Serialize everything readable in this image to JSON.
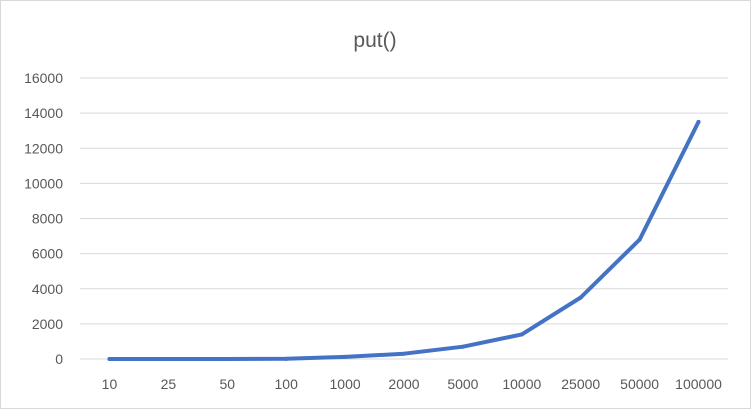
{
  "chart_data": {
    "type": "line",
    "title": "put()",
    "xlabel": "",
    "ylabel": "",
    "categories": [
      "10",
      "25",
      "50",
      "100",
      "1000",
      "2000",
      "5000",
      "10000",
      "25000",
      "50000",
      "100000"
    ],
    "series": [
      {
        "name": "put()",
        "color": "#4472c4",
        "values": [
          0,
          0,
          0,
          10,
          120,
          300,
          700,
          1400,
          3500,
          6800,
          13500
        ]
      }
    ],
    "ylim": [
      0,
      16000
    ],
    "yticks": [
      "0",
      "2000",
      "4000",
      "6000",
      "8000",
      "10000",
      "12000",
      "14000",
      "16000"
    ],
    "grid": true,
    "legend": "none"
  }
}
